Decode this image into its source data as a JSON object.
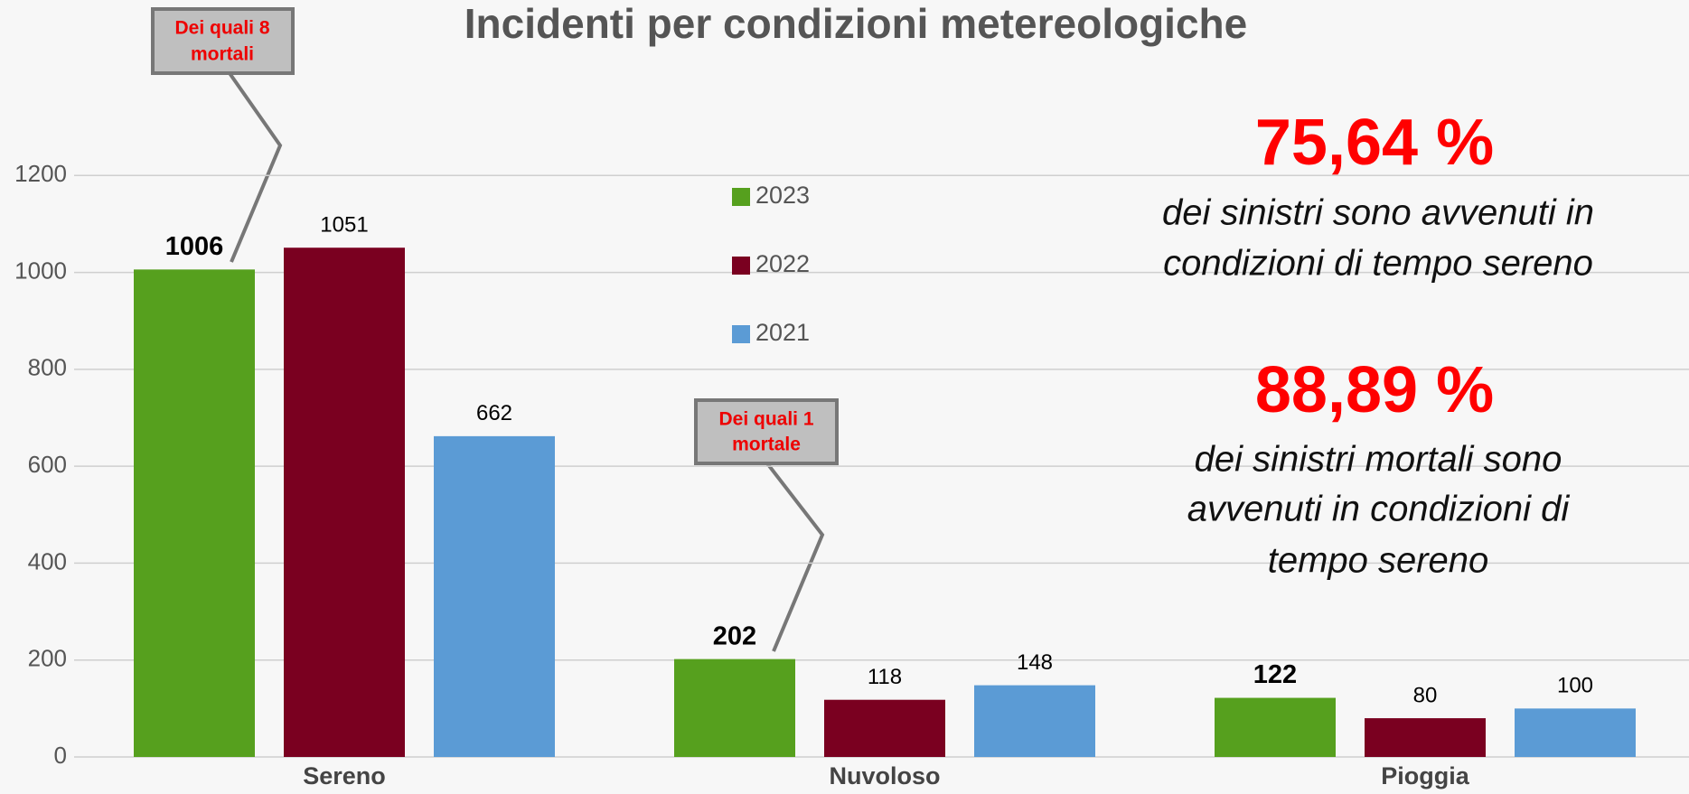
{
  "chart_data": {
    "type": "bar",
    "title": "Incidenti per condizioni metereologiche",
    "categories": [
      "Sereno",
      "Nuvoloso",
      "Pioggia"
    ],
    "series": [
      {
        "name": "2023",
        "color": "#56a01e",
        "values": [
          1006,
          202,
          122
        ]
      },
      {
        "name": "2022",
        "color": "#7a0020",
        "values": [
          1051,
          118,
          80
        ]
      },
      {
        "name": "2021",
        "color": "#5b9bd5",
        "values": [
          662,
          148,
          100
        ]
      }
    ],
    "ylim": [
      0,
      1400
    ],
    "yticks": [
      0,
      200,
      400,
      600,
      800,
      1000,
      1200
    ],
    "grid": true,
    "callouts": [
      {
        "lines": [
          "Dei quali 8",
          "mortali"
        ]
      },
      {
        "lines": [
          "Dei quali 1",
          "mortale"
        ]
      }
    ],
    "highlights": [
      {
        "value": "75,64 %",
        "lines": [
          "dei sinistri sono avvenuti in",
          "condizioni di tempo sereno"
        ]
      },
      {
        "value": "88,89 %",
        "lines": [
          "dei sinistri mortali sono",
          "avvenuti in condizioni di",
          "tempo sereno"
        ]
      }
    ]
  }
}
